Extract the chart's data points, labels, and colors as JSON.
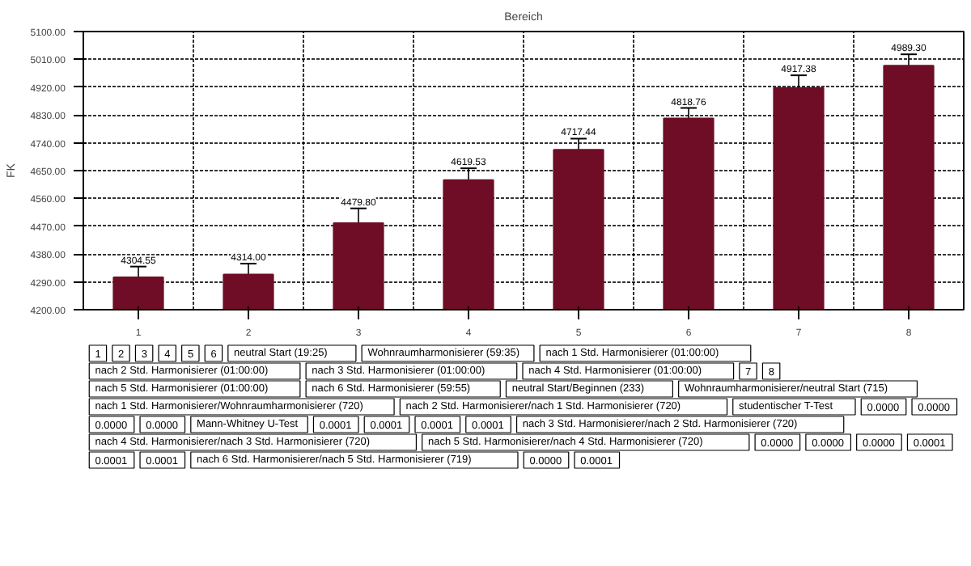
{
  "chart_data": {
    "type": "bar",
    "title": "Bereich",
    "ylabel": "FK",
    "categories": [
      "1",
      "2",
      "3",
      "4",
      "5",
      "6",
      "7",
      "8"
    ],
    "series": [
      {
        "color": "#6e0d25",
        "values": [
          4304.55,
          4314.0,
          4479.8,
          4619.53,
          4717.44,
          4818.76,
          4917.38,
          4989.3
        ],
        "errors": [
          35,
          35,
          48,
          38,
          36,
          34,
          41,
          37
        ],
        "value_labels": [
          "4304.55",
          "4314.00",
          "4479.80",
          "4619.53",
          "4717.44",
          "4818.76",
          "4917.38",
          "4989.30"
        ]
      }
    ],
    "ylim": [
      4200,
      5100
    ],
    "yticks": [
      {
        "value": 4200,
        "label": "4200.00"
      },
      {
        "value": 4290,
        "label": "4290.00"
      },
      {
        "value": 4380,
        "label": "4380.00"
      },
      {
        "value": 4470,
        "label": "4470.00"
      },
      {
        "value": 4560,
        "label": "4560.00"
      },
      {
        "value": 4650,
        "label": "4650.00"
      },
      {
        "value": 4740,
        "label": "4740.00"
      },
      {
        "value": 4830,
        "label": "4830.00"
      },
      {
        "value": 4920,
        "label": "4920.00"
      },
      {
        "value": 5010,
        "label": "5010.00"
      },
      {
        "value": 5100,
        "label": "5100.00"
      }
    ],
    "grid": true,
    "annotations": [
      "1",
      "2",
      "3",
      "4",
      "5",
      "6",
      "neutral Start (19:25)",
      "Wohnraumharmonisierer (59:35)",
      "nach 1 Std. Harmonisierer (01:00:00)",
      "nach 2 Std. Harmonisierer (01:00:00)",
      "nach 3 Std. Harmonisierer (01:00:00)",
      "nach 4 Std. Harmonisierer (01:00:00)",
      "7",
      "8",
      "nach 5 Std. Harmonisierer (01:00:00)",
      "nach 6 Std. Harmonisierer (59:55)",
      "neutral Start/Beginnen (233)",
      "Wohnraumharmonisierer/neutral Start (715)",
      "nach 1 Std. Harmonisierer/Wohnraumharmonisierer (720)",
      "nach 2 Std. Harmonisierer/nach 1 Std. Harmonisierer (720)",
      "studentischer T-Test",
      "0.0000",
      "0.0000",
      "0.0000",
      "0.0000",
      "Mann-Whitney U-Test",
      "0.0001",
      "0.0001",
      "0.0001",
      "0.0001",
      "nach 3 Std. Harmonisierer/nach 2 Std. Harmonisierer (720)",
      "nach 4 Std. Harmonisierer/nach 3 Std. Harmonisierer (720)",
      "nach 5 Std. Harmonisierer/nach 4 Std. Harmonisierer (720)",
      "0.0000",
      "0.0000",
      "0.0000",
      "0.0001",
      "0.0001",
      "0.0001",
      "nach 6 Std. Harmonisierer/nach 5 Std. Harmonisierer (719)",
      "0.0000",
      "0.0001"
    ]
  }
}
